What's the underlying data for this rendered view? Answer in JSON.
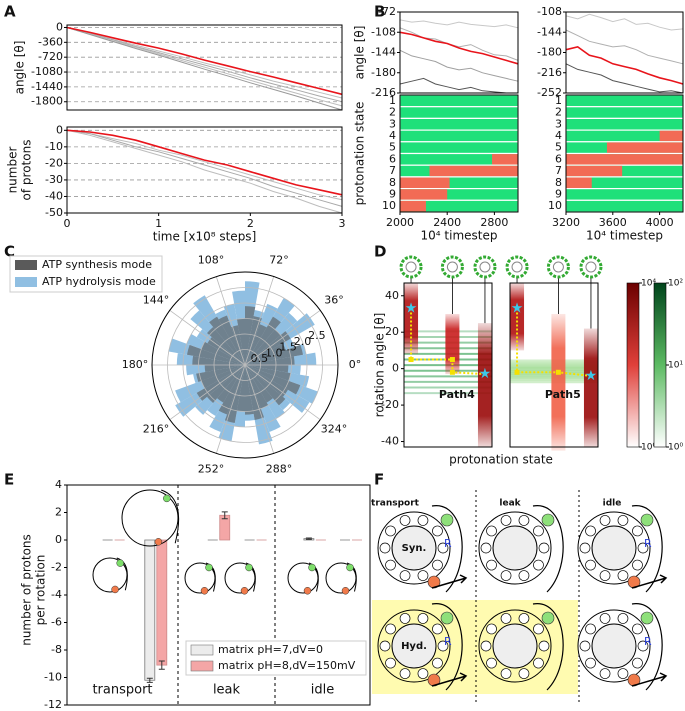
{
  "panel_labels": [
    "A",
    "B",
    "C",
    "D",
    "E",
    "F"
  ],
  "chart_data": [
    {
      "type": "line",
      "ylabel": "angle [θ]",
      "xlim": [
        0,
        3
      ],
      "ylim": [
        -2000,
        60
      ],
      "yticks": [
        0,
        -360,
        -720,
        -1080,
        -1440,
        -1800
      ],
      "grid": true,
      "x": [
        0,
        0.25,
        0.5,
        0.75,
        1,
        1.25,
        1.5,
        1.75,
        2,
        2.25,
        2.5,
        2.75,
        3
      ],
      "series": [
        {
          "color": "#bdbdbd",
          "values": [
            0,
            -140,
            -290,
            -430,
            -570,
            -710,
            -860,
            -1000,
            -1150,
            -1300,
            -1430,
            -1570,
            -1710
          ]
        },
        {
          "color": "#a9a9a9",
          "values": [
            0,
            -150,
            -300,
            -460,
            -610,
            -760,
            -910,
            -1060,
            -1220,
            -1370,
            -1510,
            -1660,
            -1800
          ]
        },
        {
          "color": "#bdbdbd",
          "values": [
            0,
            -160,
            -330,
            -480,
            -640,
            -800,
            -960,
            -1120,
            -1280,
            -1440,
            -1590,
            -1750,
            -1900
          ]
        },
        {
          "color": "#999999",
          "values": [
            0,
            -170,
            -340,
            -510,
            -670,
            -840,
            -1010,
            -1170,
            -1340,
            -1500,
            -1660,
            -1830,
            -2000
          ]
        },
        {
          "color": "#e8141b",
          "values": [
            0,
            -120,
            -250,
            -380,
            -500,
            -640,
            -790,
            -930,
            -1070,
            -1200,
            -1340,
            -1480,
            -1620
          ]
        }
      ]
    },
    {
      "type": "line",
      "ylabel": [
        "number",
        "of protons"
      ],
      "xlabel": "time [x10⁸ steps]",
      "xlim": [
        0,
        3
      ],
      "xticks": [
        0,
        1,
        2,
        3
      ],
      "ylim": [
        -50,
        2
      ],
      "yticks": [
        0,
        -10,
        -20,
        -30,
        -40,
        -50
      ],
      "grid": true,
      "x": [
        0,
        0.25,
        0.5,
        0.75,
        1,
        1.25,
        1.5,
        1.75,
        2,
        2.25,
        2.5,
        2.75,
        3
      ],
      "series": [
        {
          "color": "#bdbdbd",
          "values": [
            0,
            -2,
            -5,
            -8,
            -12,
            -15,
            -19,
            -23,
            -27,
            -31,
            -35,
            -39,
            -42
          ]
        },
        {
          "color": "#a9a9a9",
          "values": [
            0,
            -2,
            -6,
            -10,
            -13,
            -17,
            -21,
            -25,
            -29,
            -34,
            -38,
            -42,
            -46
          ]
        },
        {
          "color": "#bdbdbd",
          "values": [
            0,
            -3,
            -7,
            -11,
            -15,
            -19,
            -24,
            -28,
            -32,
            -37,
            -41,
            -46,
            -50
          ]
        },
        {
          "color": "#e8141b",
          "values": [
            0,
            -1,
            -3,
            -6,
            -10,
            -14,
            -18,
            -21,
            -25,
            -29,
            -33,
            -36,
            -39
          ]
        }
      ]
    },
    {
      "type": "line",
      "ylabel": "angle [θ]",
      "xlim": [
        2000,
        3000
      ],
      "ylim": [
        -216,
        -72
      ],
      "yticks": [
        -72,
        -108,
        -144,
        -180,
        -216
      ],
      "x": [
        2000,
        2100,
        2200,
        2300,
        2400,
        2500,
        2600,
        2700,
        2800,
        2900,
        3000
      ],
      "series": [
        {
          "color": "#c8c8c8",
          "values": [
            -86,
            -90,
            -88,
            -92,
            -95,
            -90,
            -94,
            -96,
            -98,
            -95,
            -100
          ]
        },
        {
          "color": "#b0b0b0",
          "values": [
            -100,
            -108,
            -118,
            -120,
            -128,
            -134,
            -130,
            -140,
            -148,
            -150,
            -158
          ]
        },
        {
          "color": "#a0a0a0",
          "values": [
            -140,
            -150,
            -155,
            -160,
            -170,
            -175,
            -172,
            -180,
            -185,
            -190,
            -195
          ]
        },
        {
          "color": "#555555",
          "values": [
            -200,
            -195,
            -190,
            -200,
            -205,
            -210,
            -206,
            -212,
            -214,
            -216,
            -216
          ]
        },
        {
          "color": "#e8141b",
          "values": [
            -108,
            -112,
            -118,
            -124,
            -128,
            -136,
            -142,
            -146,
            -152,
            -158,
            -164
          ]
        }
      ]
    },
    {
      "type": "timeline",
      "ylabel": "protonation state",
      "xlabel": "10⁴ timestep",
      "xlim": [
        2000,
        3000
      ],
      "xticks": [
        2000,
        2400,
        2800
      ],
      "categories": [
        1,
        2,
        3,
        4,
        5,
        6,
        7,
        8,
        9,
        10
      ],
      "base_color": "#1fe07a",
      "color": "#f26b55",
      "intervals": [
        [],
        [],
        [],
        [],
        [],
        [
          [
            2780,
            3000
          ]
        ],
        [
          [
            2250,
            3000
          ]
        ],
        [
          [
            2000,
            2420
          ]
        ],
        [
          [
            2000,
            2400
          ]
        ],
        [
          [
            2000,
            2220
          ]
        ]
      ]
    },
    {
      "type": "line",
      "xlim": [
        3200,
        4200
      ],
      "ylim": [
        -252,
        -108
      ],
      "yticks": [
        -108,
        -144,
        -180,
        -216,
        -252
      ],
      "x": [
        3200,
        3300,
        3400,
        3500,
        3600,
        3700,
        3800,
        3900,
        4000,
        4100,
        4200
      ],
      "series": [
        {
          "color": "#c8c8c8",
          "values": [
            -115,
            -120,
            -112,
            -118,
            -125,
            -120,
            -130,
            -128,
            -135,
            -140,
            -138
          ]
        },
        {
          "color": "#b0b0b0",
          "values": [
            -140,
            -150,
            -160,
            -165,
            -170,
            -168,
            -175,
            -185,
            -190,
            -195,
            -200
          ]
        },
        {
          "color": "#555555",
          "values": [
            -200,
            -210,
            -215,
            -220,
            -230,
            -235,
            -240,
            -245,
            -250,
            -248,
            -252
          ]
        },
        {
          "color": "#e8141b",
          "values": [
            -175,
            -170,
            -185,
            -190,
            -200,
            -205,
            -210,
            -218,
            -225,
            -230,
            -236
          ]
        }
      ]
    },
    {
      "type": "timeline",
      "xlabel": "10⁴ timestep",
      "xlim": [
        3200,
        4200
      ],
      "xticks": [
        3200,
        3600,
        4000
      ],
      "categories": [
        1,
        2,
        3,
        4,
        5,
        6,
        7,
        8,
        9,
        10
      ],
      "base_color": "#1fe07a",
      "color": "#f26b55",
      "intervals": [
        [],
        [],
        [],
        [
          [
            4000,
            4200
          ]
        ],
        [
          [
            3550,
            4200
          ]
        ],
        [
          [
            3200,
            4200
          ]
        ],
        [
          [
            3200,
            3680
          ]
        ],
        [
          [
            3200,
            3420
          ]
        ],
        [],
        []
      ]
    },
    {
      "type": "polar_bar",
      "rlim": [
        0,
        3
      ],
      "rticks": [
        0.5,
        {
          "value": 1,
          "label": "1.0"
        },
        1.5,
        {
          "value": 2,
          "label": "2.0"
        },
        2.5
      ],
      "thetaticks": [
        {
          "value": 0,
          "label": "0°"
        },
        {
          "value": 36,
          "label": "36°"
        },
        {
          "value": 72,
          "label": "72°"
        },
        {
          "value": 108,
          "label": "108°"
        },
        {
          "value": 144,
          "label": "144°"
        },
        {
          "value": 180,
          "label": "180°"
        },
        {
          "value": 216,
          "label": "216°"
        },
        {
          "value": 252,
          "label": "252°"
        },
        {
          "value": 288,
          "label": "288°"
        },
        {
          "value": 324,
          "label": "324°"
        }
      ],
      "theta": [
        5,
        15,
        25,
        35,
        45,
        55,
        65,
        75,
        85,
        95,
        105,
        115,
        125,
        135,
        145,
        155,
        165,
        175,
        185,
        195,
        205,
        215,
        225,
        235,
        245,
        255,
        265,
        275,
        285,
        295,
        305,
        315,
        325,
        335,
        345,
        355
      ],
      "series": [
        {
          "name": "ATP hydrolysis mode",
          "color": "#90bfe2",
          "values": [
            2.3,
            2.0,
            1.7,
            2.6,
            2.2,
            2.5,
            2.1,
            1.8,
            2.7,
            2.4,
            2.0,
            1.9,
            2.6,
            2.3,
            1.8,
            2.0,
            2.5,
            2.2,
            1.9,
            1.7,
            2.4,
            2.6,
            2.1,
            1.9,
            2.3,
            2.5,
            2.0,
            1.8,
            2.6,
            2.3,
            2.0,
            1.9,
            2.4,
            2.5,
            2.1,
            1.8
          ]
        },
        {
          "name": "ATP synthesis mode",
          "color": "#5a5a5a",
          "values": [
            1.6,
            1.9,
            1.4,
            1.7,
            1.5,
            1.8,
            1.4,
            1.6,
            1.9,
            1.5,
            1.3,
            1.7,
            1.8,
            1.6,
            1.4,
            1.5,
            1.9,
            1.7,
            1.3,
            1.6,
            1.5,
            1.8,
            1.6,
            1.4,
            1.7,
            1.9,
            1.5,
            1.6,
            1.8,
            1.5,
            1.4,
            1.7,
            1.6,
            1.9,
            1.5,
            1.4
          ]
        }
      ]
    },
    {
      "type": "heat_columns",
      "ylabel": "rotation angle [θ]",
      "xlabel": "protonation state",
      "ylim": [
        -43,
        47
      ],
      "yticks": [
        -40,
        -20,
        0,
        20,
        40
      ],
      "xlim": [
        0,
        1
      ],
      "panels": [
        {
          "label": "Path4",
          "band": {
            "range": [
              -15,
              22
            ],
            "color": "#2e9e4f"
          },
          "columns": [
            {
              "x": 0.08,
              "range": [
                8,
                47
              ],
              "color": "#b01010"
            },
            {
              "x": 0.55,
              "range": [
                -3,
                30
              ],
              "color": "#c81e1e"
            },
            {
              "x": 0.92,
              "range": [
                -43,
                25
              ],
              "color": "#9a0a0a"
            }
          ],
          "path": [
            [
              0.08,
              33
            ],
            [
              0.08,
              5
            ],
            [
              0.55,
              5
            ],
            [
              0.55,
              -2
            ],
            [
              0.92,
              -3
            ]
          ]
        },
        {
          "label": "Path5",
          "band": {
            "range": [
              -8,
              5
            ],
            "color": "#7ccf6a"
          },
          "columns": [
            {
              "x": 0.08,
              "range": [
                10,
                47
              ],
              "color": "#b01010"
            },
            {
              "x": 0.55,
              "range": [
                -45,
                30
              ],
              "color": "#f06048"
            },
            {
              "x": 0.92,
              "range": [
                -43,
                22
              ],
              "color": "#9a0a0a"
            }
          ],
          "path": [
            [
              0.08,
              33
            ],
            [
              0.08,
              -2
            ],
            [
              0.55,
              -2
            ],
            [
              0.92,
              -4
            ]
          ]
        }
      ],
      "colorbars": [
        {
          "color": "#8b0000",
          "lim": [
            0,
            4
          ],
          "ticks": [
            {
              "value": 4,
              "label": "10⁴"
            },
            {
              "value": 0,
              "label": "10⁰"
            }
          ]
        },
        {
          "color": "#00602a",
          "lim": [
            0,
            2
          ],
          "ticks": [
            {
              "value": 2,
              "label": "10²"
            },
            {
              "value": 1,
              "label": "10¹"
            },
            {
              "value": 0,
              "label": "10⁰"
            }
          ]
        }
      ]
    },
    {
      "type": "bar",
      "ylabel": [
        "number of protons",
        "per rotation"
      ],
      "ylim": [
        -12,
        4
      ],
      "yticks": [
        4,
        2,
        0,
        -2,
        -4,
        -6,
        -8,
        -10,
        -12
      ],
      "groups": [
        "transport",
        "leak",
        "idle"
      ],
      "categories": [
        null,
        null,
        null,
        null,
        null,
        null
      ],
      "legend": "lower right",
      "series": [
        {
          "name": "matrix pH=7,dV=0",
          "color": "#ececec",
          "values": [
            0,
            -10.2,
            0,
            0,
            0.1,
            0
          ],
          "errors": [
            null,
            0.15,
            null,
            null,
            0.05,
            null
          ]
        },
        {
          "name": "matrix pH=8,dV=150mV",
          "color": "#f4a6a6",
          "values": [
            0,
            -9.1,
            1.8,
            0,
            0,
            0
          ],
          "errors": [
            null,
            0.3,
            0.25,
            null,
            null,
            null
          ]
        }
      ]
    }
  ],
  "diagram": {
    "columns": [
      "transport",
      "leak",
      "idle"
    ],
    "modes": [
      "Syn.",
      "Hyd."
    ],
    "rotor": "R"
  }
}
